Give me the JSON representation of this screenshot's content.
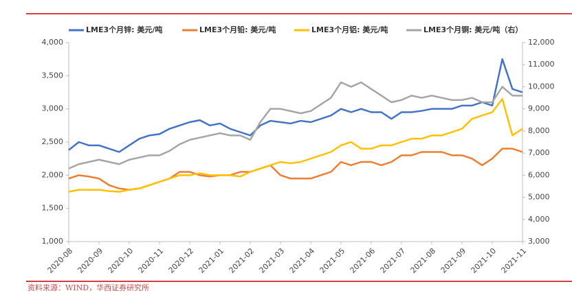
{
  "chart_data": {
    "type": "line",
    "source": "资料来源：WIND，华西证券研究所",
    "categories": [
      "2020-08",
      null,
      null,
      "2020-09",
      null,
      null,
      "2020-10",
      null,
      null,
      "2020-11",
      null,
      null,
      "2020-12",
      null,
      null,
      "2021-01",
      null,
      null,
      "2021-02",
      null,
      null,
      "2021-03",
      null,
      null,
      "2021-04",
      null,
      null,
      "2021-05",
      null,
      null,
      "2021-06",
      null,
      null,
      "2021-07",
      null,
      null,
      "2021-08",
      null,
      null,
      "2021-09",
      null,
      null,
      "2021-10",
      null,
      null,
      "2021-11"
    ],
    "series": [
      {
        "name": "LME3个月锌: 美元/吨",
        "color": "#4472c4",
        "values": [
          2380,
          2500,
          2450,
          2450,
          2400,
          2350,
          2450,
          2550,
          2600,
          2620,
          2700,
          2750,
          2800,
          2830,
          2750,
          2780,
          2700,
          2650,
          2600,
          2750,
          2820,
          2800,
          2780,
          2820,
          2800,
          2850,
          2900,
          3000,
          2950,
          3000,
          2950,
          2950,
          2850,
          2950,
          2950,
          2970,
          3000,
          3000,
          3000,
          3050,
          3050,
          3100,
          3050,
          3750,
          3300,
          3250
        ]
      },
      {
        "name": "LME3个月铅: 美元/吨",
        "color": "#ed7d31",
        "values": [
          1950,
          2000,
          1980,
          1950,
          1850,
          1800,
          1780,
          1800,
          1850,
          1900,
          1950,
          2050,
          2050,
          2000,
          1980,
          2000,
          2000,
          2050,
          2050,
          2100,
          2150,
          2000,
          1950,
          1950,
          1950,
          2000,
          2050,
          2200,
          2150,
          2200,
          2200,
          2150,
          2200,
          2300,
          2300,
          2350,
          2350,
          2350,
          2300,
          2300,
          2250,
          2150,
          2250,
          2400,
          2400,
          2350
        ]
      },
      {
        "name": "LME3个月铝: 美元/吨",
        "color": "#ffc000",
        "values": [
          1750,
          1780,
          1780,
          1780,
          1760,
          1750,
          1780,
          1800,
          1850,
          1900,
          1950,
          2000,
          2000,
          2030,
          2000,
          2000,
          2000,
          1980,
          2050,
          2100,
          2150,
          2200,
          2180,
          2200,
          2250,
          2300,
          2350,
          2450,
          2500,
          2400,
          2400,
          2450,
          2450,
          2500,
          2550,
          2550,
          2600,
          2600,
          2650,
          2700,
          2850,
          2900,
          2950,
          3150,
          2600,
          2700
        ]
      },
      {
        "name": "LME3个月铜: 美元/吨（右）",
        "color": "#a5a5a5",
        "axis": "y2",
        "values": [
          6300,
          6500,
          6600,
          6700,
          6600,
          6500,
          6700,
          6800,
          6900,
          6900,
          7100,
          7400,
          7600,
          7700,
          7800,
          7900,
          7800,
          7800,
          7600,
          8400,
          9000,
          9000,
          8900,
          8800,
          8900,
          9200,
          9500,
          10200,
          10000,
          10200,
          9900,
          9600,
          9300,
          9400,
          9600,
          9500,
          9600,
          9500,
          9400,
          9400,
          9500,
          9300,
          9300,
          10000,
          9600,
          9600
        ]
      }
    ],
    "ylim": [
      1000,
      4000
    ],
    "yticks": [
      {
        "value": 1000,
        "label": "1,000"
      },
      {
        "value": 1500,
        "label": "1,500"
      },
      {
        "value": 2000,
        "label": "2,000"
      },
      {
        "value": 2500,
        "label": "2,500"
      },
      {
        "value": 3000,
        "label": "3,000"
      },
      {
        "value": 3500,
        "label": "3,500"
      },
      {
        "value": 4000,
        "label": "4,000"
      }
    ],
    "y2lim": [
      3000,
      12000
    ],
    "y2ticks": [
      {
        "value": 3000,
        "label": "3,000"
      },
      {
        "value": 4000,
        "label": "4,000"
      },
      {
        "value": 5000,
        "label": "5,000"
      },
      {
        "value": 6000,
        "label": "6,000"
      },
      {
        "value": 7000,
        "label": "7,000"
      },
      {
        "value": 8000,
        "label": "8,000"
      },
      {
        "value": 9000,
        "label": "9,000"
      },
      {
        "value": 10000,
        "label": "10,000"
      },
      {
        "value": 11000,
        "label": "11,000"
      },
      {
        "value": 12000,
        "label": "12,000"
      }
    ],
    "grid": false,
    "legend": "top"
  }
}
